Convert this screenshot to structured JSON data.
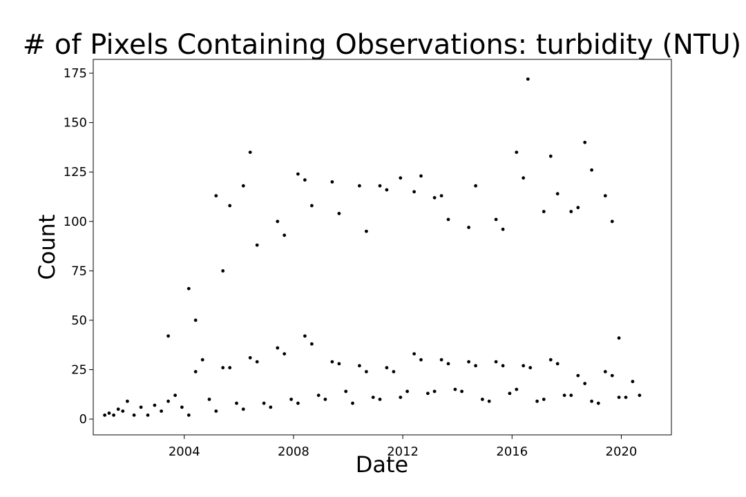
{
  "chart_data": {
    "type": "scatter",
    "title": "# of Pixels Containing Observations: turbidity (NTU)",
    "xlabel": "Date",
    "ylabel": "Count",
    "xlim": [
      "2000-09-01",
      "2021-11-01"
    ],
    "ylim": [
      -8,
      182
    ],
    "xticks": [
      {
        "label": "2004",
        "value": "2004-01-01"
      },
      {
        "label": "2008",
        "value": "2008-01-01"
      },
      {
        "label": "2012",
        "value": "2012-01-01"
      },
      {
        "label": "2016",
        "value": "2016-01-01"
      },
      {
        "label": "2020",
        "value": "2020-01-01"
      }
    ],
    "yticks": [
      0,
      25,
      50,
      75,
      100,
      125,
      150,
      175
    ],
    "grid": false,
    "marker_color": "#000000",
    "series": [
      {
        "points": [
          [
            "2001-02-01",
            2
          ],
          [
            "2001-04-01",
            3
          ],
          [
            "2001-06-01",
            2
          ],
          [
            "2001-08-01",
            5
          ],
          [
            "2001-10-01",
            4
          ],
          [
            "2001-12-01",
            9
          ],
          [
            "2002-03-01",
            2
          ],
          [
            "2002-06-01",
            6
          ],
          [
            "2002-09-01",
            2
          ],
          [
            "2002-12-01",
            7
          ],
          [
            "2003-03-01",
            4
          ],
          [
            "2003-06-01",
            9
          ],
          [
            "2003-09-01",
            12
          ],
          [
            "2003-12-01",
            6
          ],
          [
            "2004-03-01",
            2
          ],
          [
            "2004-06-01",
            24
          ],
          [
            "2004-09-01",
            30
          ],
          [
            "2004-12-01",
            10
          ],
          [
            "2005-03-01",
            4
          ],
          [
            "2005-06-01",
            26
          ],
          [
            "2005-09-01",
            26
          ],
          [
            "2005-12-01",
            8
          ],
          [
            "2006-03-01",
            5
          ],
          [
            "2006-06-01",
            31
          ],
          [
            "2006-09-01",
            29
          ],
          [
            "2006-12-01",
            8
          ],
          [
            "2007-03-01",
            6
          ],
          [
            "2007-06-01",
            36
          ],
          [
            "2007-09-01",
            33
          ],
          [
            "2007-12-01",
            10
          ],
          [
            "2008-03-01",
            8
          ],
          [
            "2008-06-01",
            42
          ],
          [
            "2008-09-01",
            38
          ],
          [
            "2008-12-01",
            12
          ],
          [
            "2009-03-01",
            10
          ],
          [
            "2009-06-01",
            29
          ],
          [
            "2009-09-01",
            28
          ],
          [
            "2009-12-01",
            14
          ],
          [
            "2010-03-01",
            8
          ],
          [
            "2010-06-01",
            27
          ],
          [
            "2010-09-01",
            24
          ],
          [
            "2010-12-01",
            11
          ],
          [
            "2011-03-01",
            10
          ],
          [
            "2011-06-01",
            26
          ],
          [
            "2011-09-01",
            24
          ],
          [
            "2011-12-01",
            11
          ],
          [
            "2012-03-01",
            14
          ],
          [
            "2012-06-01",
            33
          ],
          [
            "2012-09-01",
            30
          ],
          [
            "2012-12-01",
            13
          ],
          [
            "2013-03-01",
            14
          ],
          [
            "2013-06-01",
            30
          ],
          [
            "2013-09-01",
            28
          ],
          [
            "2013-12-01",
            15
          ],
          [
            "2014-03-01",
            14
          ],
          [
            "2014-06-01",
            29
          ],
          [
            "2014-09-01",
            27
          ],
          [
            "2014-12-01",
            10
          ],
          [
            "2015-03-01",
            9
          ],
          [
            "2015-06-01",
            29
          ],
          [
            "2015-09-01",
            27
          ],
          [
            "2015-12-01",
            13
          ],
          [
            "2016-03-01",
            15
          ],
          [
            "2016-06-01",
            27
          ],
          [
            "2016-09-01",
            26
          ],
          [
            "2016-12-01",
            9
          ],
          [
            "2017-03-01",
            10
          ],
          [
            "2017-06-01",
            30
          ],
          [
            "2017-09-01",
            28
          ],
          [
            "2017-12-01",
            12
          ],
          [
            "2018-03-01",
            12
          ],
          [
            "2018-06-01",
            22
          ],
          [
            "2018-09-01",
            18
          ],
          [
            "2018-12-01",
            9
          ],
          [
            "2019-03-01",
            8
          ],
          [
            "2019-06-01",
            24
          ],
          [
            "2019-09-01",
            22
          ],
          [
            "2019-12-01",
            11
          ],
          [
            "2020-03-01",
            11
          ],
          [
            "2020-06-01",
            19
          ],
          [
            "2020-09-01",
            12
          ],
          [
            "2003-06-01",
            42
          ],
          [
            "2004-03-01",
            66
          ],
          [
            "2004-06-01",
            50
          ],
          [
            "2005-03-01",
            113
          ],
          [
            "2005-06-01",
            75
          ],
          [
            "2005-09-01",
            108
          ],
          [
            "2006-03-01",
            118
          ],
          [
            "2006-06-01",
            135
          ],
          [
            "2006-09-01",
            88
          ],
          [
            "2007-06-01",
            100
          ],
          [
            "2007-09-01",
            93
          ],
          [
            "2008-03-01",
            124
          ],
          [
            "2008-06-01",
            121
          ],
          [
            "2008-09-01",
            108
          ],
          [
            "2009-06-01",
            120
          ],
          [
            "2009-09-01",
            104
          ],
          [
            "2010-06-01",
            118
          ],
          [
            "2010-09-01",
            95
          ],
          [
            "2011-03-01",
            118
          ],
          [
            "2011-06-01",
            116
          ],
          [
            "2011-12-01",
            122
          ],
          [
            "2012-06-01",
            115
          ],
          [
            "2012-09-01",
            123
          ],
          [
            "2013-03-01",
            112
          ],
          [
            "2013-06-01",
            113
          ],
          [
            "2013-09-01",
            101
          ],
          [
            "2014-06-01",
            97
          ],
          [
            "2014-09-01",
            118
          ],
          [
            "2015-06-01",
            101
          ],
          [
            "2015-09-01",
            96
          ],
          [
            "2016-03-01",
            135
          ],
          [
            "2016-06-01",
            122
          ],
          [
            "2016-08-01",
            172
          ],
          [
            "2017-03-01",
            105
          ],
          [
            "2017-06-01",
            133
          ],
          [
            "2017-09-01",
            114
          ],
          [
            "2018-03-01",
            105
          ],
          [
            "2018-06-01",
            107
          ],
          [
            "2018-09-01",
            140
          ],
          [
            "2018-12-01",
            126
          ],
          [
            "2019-06-01",
            113
          ],
          [
            "2019-09-01",
            100
          ],
          [
            "2019-12-01",
            41
          ]
        ]
      }
    ]
  }
}
